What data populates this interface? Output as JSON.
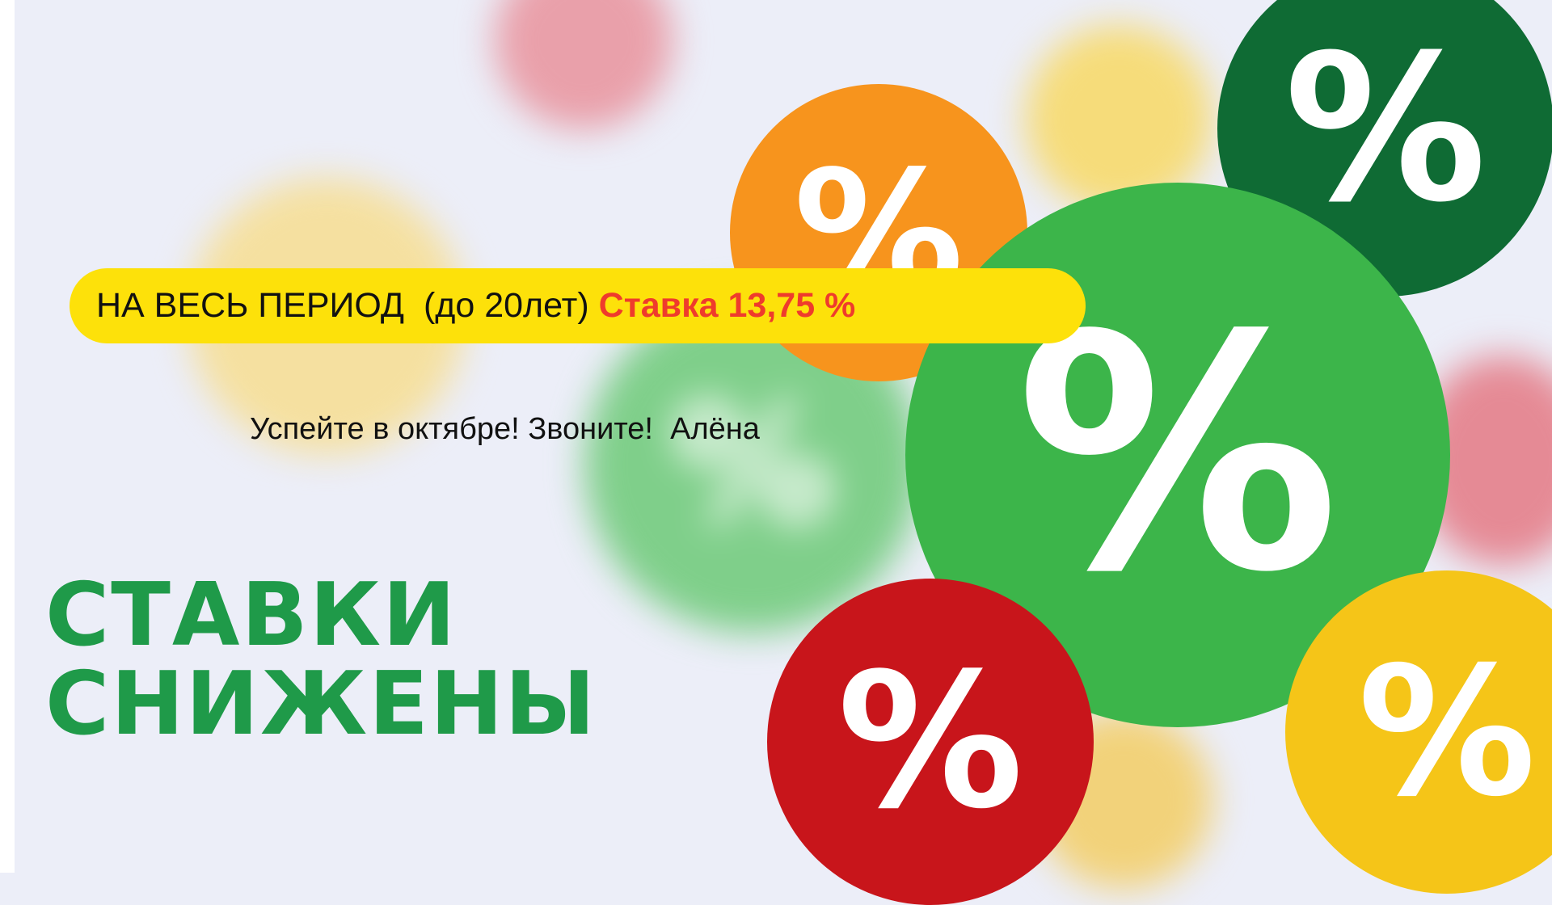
{
  "banner": {
    "period_text": "НА ВЕСЬ ПЕРИОД  (до 20лет)",
    "rate_text": "Ставка 13,75 %",
    "subtitle": "Успейте в октябре! Звоните!  Алёна",
    "headline_line1": "СТАВКИ",
    "headline_line2": "СНИЖЕНЫ",
    "percent_symbol": "%"
  },
  "colors": {
    "pill": "#fde10a",
    "rate": "#ef3b2c",
    "headline": "#1f9a49",
    "green": "#3cb54a",
    "dark_green": "#0f6b34",
    "orange": "#f7941d",
    "red": "#c8151b",
    "yellow": "#f5c518"
  }
}
